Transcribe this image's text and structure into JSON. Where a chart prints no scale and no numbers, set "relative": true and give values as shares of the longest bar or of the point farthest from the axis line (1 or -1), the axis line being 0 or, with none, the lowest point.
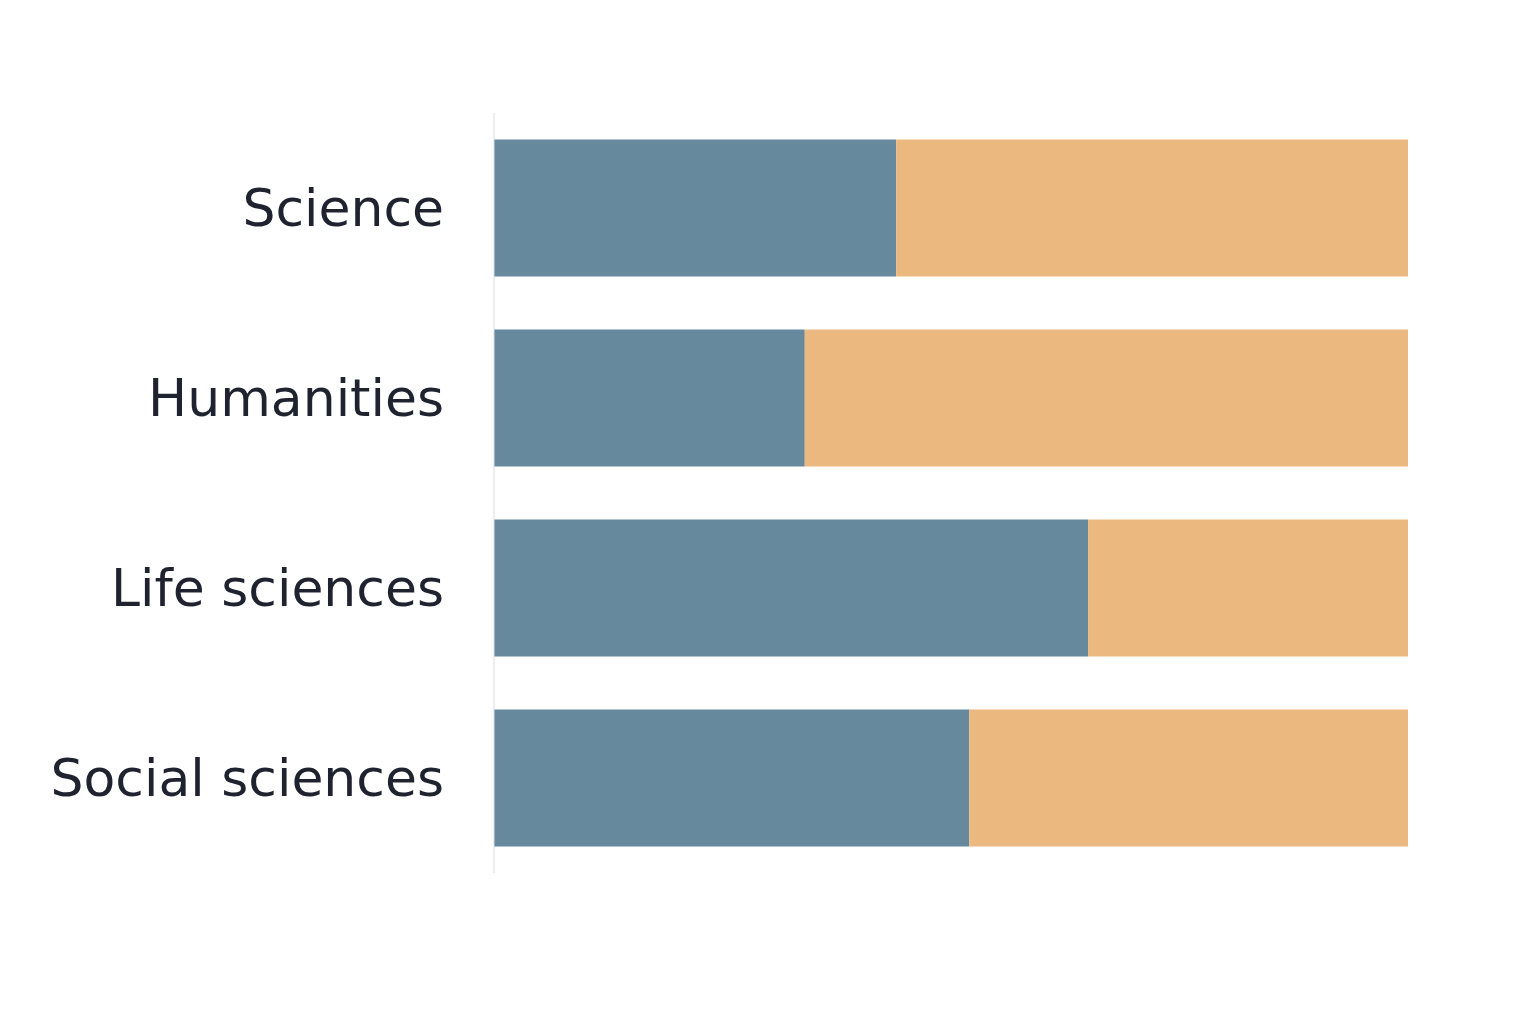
{
  "chart_data": {
    "type": "bar",
    "orientation": "horizontal",
    "stacked": true,
    "relative": true,
    "categories": [
      "Science",
      "Humanities",
      "Life sciences",
      "Social sciences"
    ],
    "series": [
      {
        "color": "#66899e",
        "values": [
          0.44,
          0.34,
          0.65,
          0.52
        ]
      },
      {
        "color": "#ebb97f",
        "values": [
          0.56,
          0.66,
          0.35,
          0.48
        ]
      }
    ]
  }
}
